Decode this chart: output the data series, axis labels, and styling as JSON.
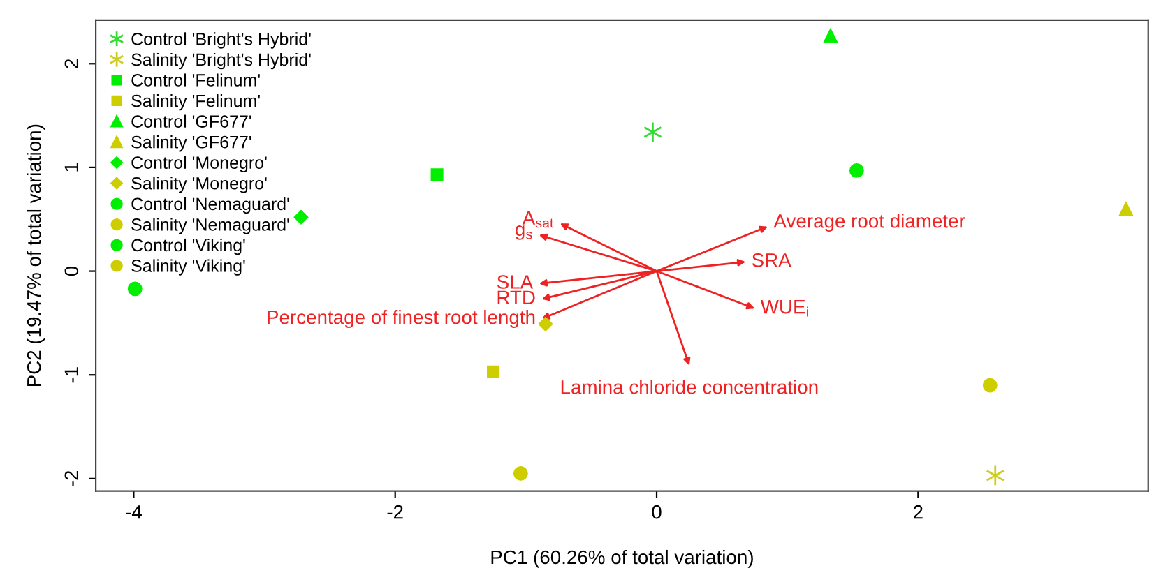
{
  "chart_data": {
    "type": "scatter",
    "xlabel": "PC1 (60.26% of total variation)",
    "ylabel": "PC2 (19.47% of total variation)",
    "xlim": [
      -4.29,
      3.76
    ],
    "ylim": [
      -2.12,
      2.42
    ],
    "xticks": [
      -4,
      -2,
      0,
      2
    ],
    "yticks": [
      -2,
      -1,
      0,
      1,
      2
    ],
    "grid": false,
    "legend": "top left",
    "series": [
      {
        "name": "Control 'Bright's Hybrid'",
        "color": "#33dd33",
        "marker": "cross",
        "x": [
          -0.03
        ],
        "values": [
          1.34
        ]
      },
      {
        "name": "Salinity 'Bright's Hybrid'",
        "color": "#cccc22",
        "marker": "cross",
        "x": [
          2.59
        ],
        "values": [
          -1.97
        ]
      },
      {
        "name": "Control 'Felinum'",
        "color": "#00ee00",
        "marker": "square",
        "x": [
          -1.68
        ],
        "values": [
          0.93
        ]
      },
      {
        "name": "Salinity 'Felinum'",
        "color": "#cdcd00",
        "marker": "square",
        "x": [
          -1.25
        ],
        "values": [
          -0.97
        ]
      },
      {
        "name": "Control 'GF677'",
        "color": "#00ee00",
        "marker": "triangle",
        "x": [
          1.33
        ],
        "values": [
          2.27
        ]
      },
      {
        "name": "Salinity 'GF677'",
        "color": "#cdcd00",
        "marker": "triangle",
        "x": [
          3.59
        ],
        "values": [
          0.6
        ]
      },
      {
        "name": "Control 'Monegro'",
        "color": "#00ee00",
        "marker": "diamond",
        "x": [
          -2.72
        ],
        "values": [
          0.52
        ]
      },
      {
        "name": "Salinity 'Monegro'",
        "color": "#cdcd00",
        "marker": "diamond",
        "x": [
          -0.85
        ],
        "values": [
          -0.51
        ]
      },
      {
        "name": "Control 'Nemaguard'",
        "color": "#00ee00",
        "marker": "circle",
        "x": [
          -3.99
        ],
        "values": [
          -0.17
        ]
      },
      {
        "name": "Salinity 'Nemaguard'",
        "color": "#cdcd00",
        "marker": "circle",
        "x": [
          -1.04
        ],
        "values": [
          -1.95
        ]
      },
      {
        "name": "Control 'Viking'",
        "color": "#00ee00",
        "marker": "circle",
        "x": [
          1.53
        ],
        "values": [
          0.97
        ]
      },
      {
        "name": "Salinity 'Viking'",
        "color": "#cdcd00",
        "marker": "circle",
        "x": [
          2.55
        ],
        "values": [
          -1.1
        ]
      }
    ],
    "annotations": [
      "A$_{sat}$",
      "g$_{s}$",
      "Average root diameter",
      "SRA",
      "WUE$_{i}$",
      "SLA",
      "RTD",
      "Percentage of finest root length",
      "Lamina chloride concentration"
    ]
  }
}
